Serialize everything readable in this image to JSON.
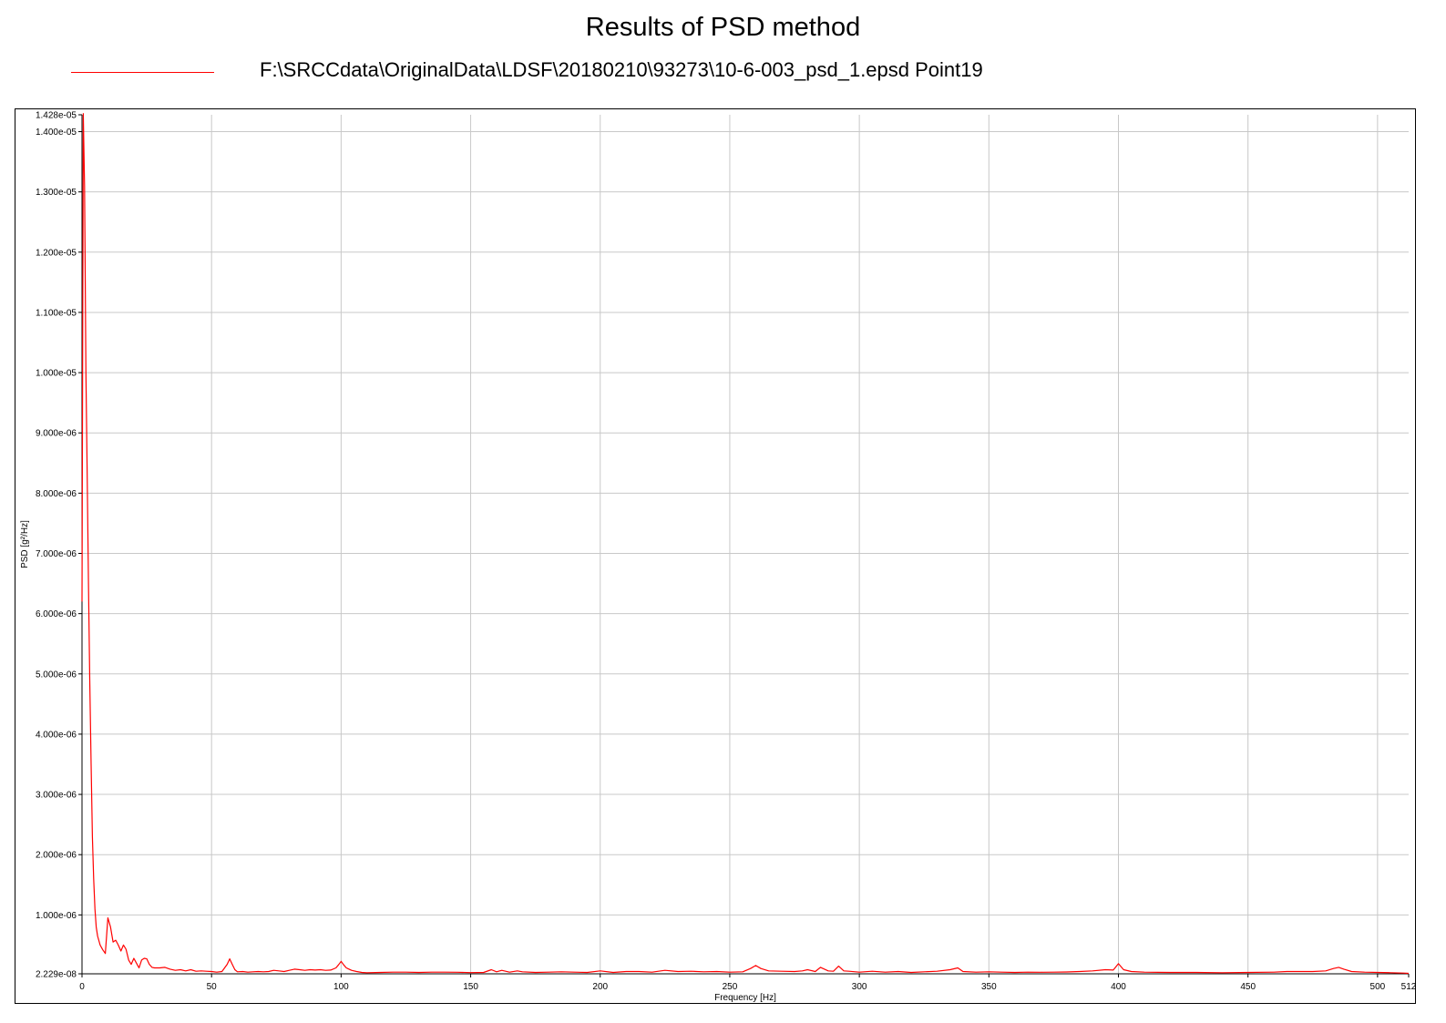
{
  "chart_data": {
    "type": "line",
    "title": "Results of PSD method",
    "xlabel": "Frequency [Hz]",
    "ylabel": "PSD [g²/Hz]",
    "xlim": [
      0,
      512
    ],
    "ylim": [
      2.229e-08,
      1.428e-05
    ],
    "grid": true,
    "legend_position": "top",
    "x_ticks": [
      0,
      50,
      100,
      150,
      200,
      250,
      300,
      350,
      400,
      450,
      500,
      512
    ],
    "x_tick_labels": [
      "0",
      "50",
      "100",
      "150",
      "200",
      "250",
      "300",
      "350",
      "400",
      "450",
      "500",
      "512"
    ],
    "y_ticks": [
      2.229e-08,
      1e-06,
      2e-06,
      3e-06,
      4e-06,
      5e-06,
      6e-06,
      7e-06,
      8e-06,
      9e-06,
      1e-05,
      1.1e-05,
      1.2e-05,
      1.3e-05,
      1.4e-05,
      1.428e-05
    ],
    "y_tick_labels": [
      "2.229e-08",
      "1.000e-06",
      "2.000e-06",
      "3.000e-06",
      "4.000e-06",
      "5.000e-06",
      "6.000e-06",
      "7.000e-06",
      "8.000e-06",
      "9.000e-06",
      "1.000e-05",
      "1.100e-05",
      "1.200e-05",
      "1.300e-05",
      "1.400e-05",
      "1.428e-05"
    ],
    "series": [
      {
        "name": "F:\\SRCCdata\\OriginalData\\LDSF\\20180210\\93273\\10-6-003_psd_1.epsd  Point19",
        "color": "#ff0000",
        "x": [
          0,
          0.5,
          1,
          1.5,
          2,
          2.5,
          3,
          3.5,
          4,
          4.5,
          5,
          5.5,
          6,
          7,
          8,
          9,
          10,
          11,
          12,
          13,
          14,
          15,
          16,
          17,
          18,
          19,
          20,
          21,
          22,
          23,
          24,
          25,
          26,
          27,
          28,
          30,
          32,
          34,
          36,
          38,
          40,
          42,
          44,
          46,
          48,
          50,
          52,
          54,
          56,
          57,
          58,
          59,
          60,
          62,
          64,
          66,
          68,
          70,
          72,
          74,
          76,
          78,
          80,
          82,
          84,
          86,
          88,
          90,
          92,
          94,
          96,
          98,
          99,
          100,
          101,
          102,
          104,
          106,
          108,
          110,
          115,
          120,
          125,
          130,
          135,
          140,
          145,
          150,
          155,
          158,
          160,
          162,
          165,
          168,
          170,
          175,
          180,
          185,
          190,
          195,
          200,
          205,
          210,
          215,
          220,
          225,
          230,
          235,
          240,
          245,
          250,
          255,
          258,
          260,
          262,
          265,
          270,
          275,
          278,
          280,
          283,
          285,
          288,
          290,
          292,
          294,
          296,
          300,
          305,
          310,
          315,
          320,
          325,
          330,
          335,
          338,
          340,
          345,
          350,
          355,
          360,
          365,
          370,
          375,
          380,
          385,
          390,
          395,
          398,
          400,
          402,
          405,
          410,
          420,
          430,
          440,
          450,
          460,
          465,
          470,
          475,
          480,
          483,
          485,
          487,
          490,
          495,
          500,
          505,
          510,
          512
        ],
        "y": [
          6.2e-06,
          1.43e-05,
          1.31e-05,
          1e-05,
          8.3e-06,
          6.5e-06,
          4.9e-06,
          3.5e-06,
          2.3e-06,
          1.6e-06,
          1.1e-06,
          8e-07,
          6.5e-07,
          5e-07,
          4.2e-07,
          3.6e-07,
          9.5e-07,
          8e-07,
          5.5e-07,
          5.8e-07,
          5e-07,
          4e-07,
          5e-07,
          4.3e-07,
          2.5e-07,
          1.8e-07,
          2.8e-07,
          2e-07,
          1.2e-07,
          2.5e-07,
          2.8e-07,
          2.7e-07,
          1.8e-07,
          1.3e-07,
          1.2e-07,
          1.2e-07,
          1.3e-07,
          1e-07,
          8e-08,
          9e-08,
          7e-08,
          9e-08,
          6.5e-08,
          7e-08,
          6.5e-08,
          6e-08,
          5e-08,
          6e-08,
          1.8e-07,
          2.7e-07,
          1.8e-07,
          9e-08,
          5.5e-08,
          6e-08,
          5e-08,
          5.5e-08,
          6e-08,
          5.5e-08,
          6e-08,
          8e-08,
          7e-08,
          6e-08,
          8e-08,
          1e-07,
          9e-08,
          8e-08,
          9e-08,
          8.5e-08,
          9e-08,
          8e-08,
          8.5e-08,
          1.2e-07,
          1.7e-07,
          2.3e-07,
          1.7e-07,
          1.2e-07,
          8e-08,
          6e-08,
          4.5e-08,
          4e-08,
          4.5e-08,
          5e-08,
          5e-08,
          4.5e-08,
          5e-08,
          5e-08,
          4.8e-08,
          4.2e-08,
          4.5e-08,
          9e-08,
          5.5e-08,
          8e-08,
          5e-08,
          7e-08,
          5.5e-08,
          4.5e-08,
          5e-08,
          5.5e-08,
          5e-08,
          4.5e-08,
          7e-08,
          4.5e-08,
          6e-08,
          6e-08,
          5e-08,
          8e-08,
          6e-08,
          6.5e-08,
          5.5e-08,
          6e-08,
          5e-08,
          5.5e-08,
          1.1e-07,
          1.6e-07,
          1.1e-07,
          7e-08,
          6.5e-08,
          6e-08,
          7e-08,
          9e-08,
          6e-08,
          1.3e-07,
          7e-08,
          6.5e-08,
          1.5e-07,
          7e-08,
          6.5e-08,
          5e-08,
          6.5e-08,
          5e-08,
          6e-08,
          4.5e-08,
          5.5e-08,
          6.5e-08,
          9e-08,
          1.2e-07,
          6e-08,
          5e-08,
          5.5e-08,
          5e-08,
          4.5e-08,
          5e-08,
          4.8e-08,
          5e-08,
          5.2e-08,
          6e-08,
          7e-08,
          9e-08,
          8.5e-08,
          1.9e-07,
          9e-08,
          6e-08,
          5e-08,
          4.5e-08,
          4.5e-08,
          4e-08,
          4.5e-08,
          5e-08,
          6e-08,
          6e-08,
          6e-08,
          7e-08,
          1.1e-07,
          1.3e-07,
          1e-07,
          6e-08,
          5e-08,
          4.5e-08,
          4e-08,
          3.5e-08,
          3e-08
        ]
      }
    ]
  }
}
